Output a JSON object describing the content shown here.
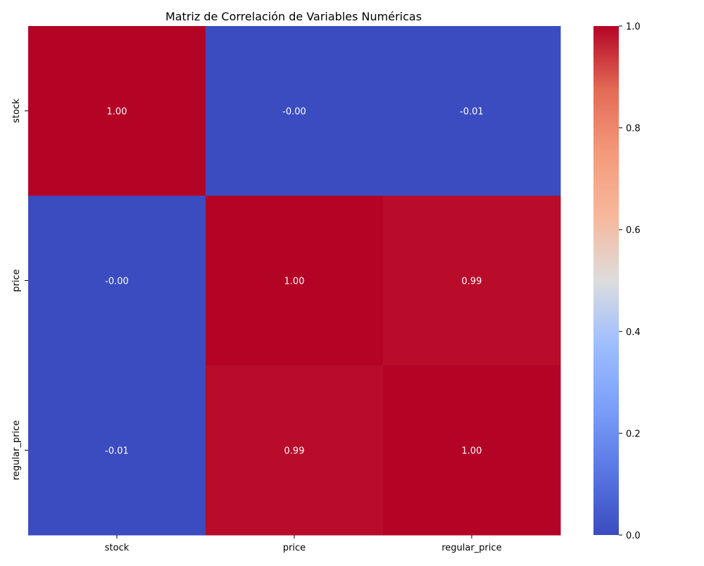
{
  "chart_data": {
    "type": "heatmap",
    "title": "Matriz de Correlación de Variables Numéricas",
    "x_categories": [
      "stock",
      "price",
      "regular_price"
    ],
    "y_categories": [
      "stock",
      "price",
      "regular_price"
    ],
    "values": [
      [
        1.0,
        -0.0,
        -0.01
      ],
      [
        -0.0,
        1.0,
        0.99
      ],
      [
        -0.01,
        0.99,
        1.0
      ]
    ],
    "annotations": [
      [
        "1.00",
        "-0.00",
        "-0.01"
      ],
      [
        "-0.00",
        "1.00",
        "0.99"
      ],
      [
        "-0.01",
        "0.99",
        "1.00"
      ]
    ],
    "colormap": "coolwarm",
    "colorbar": {
      "range": [
        0.0,
        1.0
      ],
      "ticks": [
        0.0,
        0.2,
        0.4,
        0.6,
        0.8,
        1.0
      ],
      "tick_labels": [
        "0.0",
        "0.2",
        "0.4",
        "0.6",
        "0.8",
        "1.0"
      ]
    },
    "colors": {
      "low": "#3b4cc0",
      "mid": "#dddddd",
      "high": "#b40426",
      "annotation_text": "#ffffff",
      "axis_text": "#000000"
    }
  }
}
